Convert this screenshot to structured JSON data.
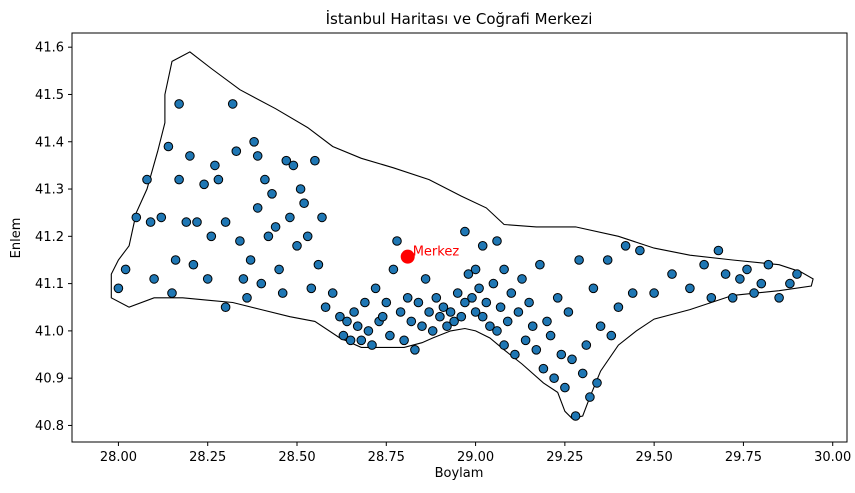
{
  "chart_data": {
    "type": "scatter",
    "title": "İstanbul Haritası ve Coğrafi Merkezi",
    "xlabel": "Boylam",
    "ylabel": "Enlem",
    "xlim": [
      27.87,
      30.04
    ],
    "ylim": [
      40.765,
      41.63
    ],
    "xticks": [
      28.0,
      28.25,
      28.5,
      28.75,
      29.0,
      29.25,
      29.5,
      29.75,
      30.0
    ],
    "xtick_labels": [
      "28.00",
      "28.25",
      "28.50",
      "28.75",
      "29.00",
      "29.25",
      "29.50",
      "29.75",
      "30.00"
    ],
    "yticks": [
      40.8,
      40.9,
      41.0,
      41.1,
      41.2,
      41.3,
      41.4,
      41.5,
      41.6
    ],
    "ytick_labels": [
      "40.8",
      "40.9",
      "41.0",
      "41.1",
      "41.2",
      "41.3",
      "41.4",
      "41.5",
      "41.6"
    ],
    "grid": false,
    "colors": {
      "points": "#1f77b4",
      "point_edge": "#000000",
      "boundary": "#000000",
      "center": "#ff0000"
    },
    "center": {
      "label": "Merkez",
      "x": 28.81,
      "y": 41.157
    },
    "boundary_outline": [
      [
        27.98,
        41.09
      ],
      [
        27.98,
        41.12
      ],
      [
        28.0,
        41.15
      ],
      [
        28.03,
        41.18
      ],
      [
        28.05,
        41.25
      ],
      [
        28.08,
        41.3
      ],
      [
        28.11,
        41.38
      ],
      [
        28.13,
        41.44
      ],
      [
        28.13,
        41.5
      ],
      [
        28.15,
        41.57
      ],
      [
        28.2,
        41.59
      ],
      [
        28.26,
        41.555
      ],
      [
        28.34,
        41.51
      ],
      [
        28.44,
        41.47
      ],
      [
        28.53,
        41.43
      ],
      [
        28.6,
        41.39
      ],
      [
        28.68,
        41.365
      ],
      [
        28.77,
        41.345
      ],
      [
        28.87,
        41.32
      ],
      [
        28.96,
        41.285
      ],
      [
        29.03,
        41.26
      ],
      [
        29.08,
        41.225
      ],
      [
        29.17,
        41.22
      ],
      [
        29.28,
        41.22
      ],
      [
        29.4,
        41.2
      ],
      [
        29.5,
        41.175
      ],
      [
        29.6,
        41.16
      ],
      [
        29.72,
        41.15
      ],
      [
        29.85,
        41.14
      ],
      [
        29.91,
        41.125
      ],
      [
        29.945,
        41.11
      ],
      [
        29.94,
        41.095
      ],
      [
        29.85,
        41.085
      ],
      [
        29.72,
        41.075
      ],
      [
        29.6,
        41.045
      ],
      [
        29.5,
        41.025
      ],
      [
        29.45,
        41.0
      ],
      [
        29.4,
        40.97
      ],
      [
        29.35,
        40.915
      ],
      [
        29.32,
        40.86
      ],
      [
        29.3,
        40.82
      ],
      [
        29.27,
        40.815
      ],
      [
        29.25,
        40.83
      ],
      [
        29.23,
        40.87
      ],
      [
        29.19,
        40.89
      ],
      [
        29.13,
        40.93
      ],
      [
        29.08,
        40.96
      ],
      [
        29.04,
        40.985
      ],
      [
        29.0,
        41.0
      ],
      [
        28.97,
        41.005
      ],
      [
        28.93,
        41.0
      ],
      [
        28.88,
        40.985
      ],
      [
        28.85,
        40.975
      ],
      [
        28.8,
        40.965
      ],
      [
        28.75,
        40.965
      ],
      [
        28.68,
        40.965
      ],
      [
        28.62,
        40.985
      ],
      [
        28.55,
        41.02
      ],
      [
        28.48,
        41.03
      ],
      [
        28.4,
        41.045
      ],
      [
        28.32,
        41.06
      ],
      [
        28.25,
        41.065
      ],
      [
        28.18,
        41.07
      ],
      [
        28.1,
        41.07
      ],
      [
        28.03,
        41.05
      ],
      [
        27.98,
        41.07
      ]
    ],
    "points": [
      [
        28.0,
        41.09
      ],
      [
        28.02,
        41.13
      ],
      [
        28.05,
        41.24
      ],
      [
        28.08,
        41.32
      ],
      [
        28.09,
        41.23
      ],
      [
        28.1,
        41.11
      ],
      [
        28.12,
        41.24
      ],
      [
        28.14,
        41.39
      ],
      [
        28.15,
        41.08
      ],
      [
        28.16,
        41.15
      ],
      [
        28.17,
        41.32
      ],
      [
        28.17,
        41.48
      ],
      [
        28.19,
        41.23
      ],
      [
        28.2,
        41.37
      ],
      [
        28.21,
        41.14
      ],
      [
        28.22,
        41.23
      ],
      [
        28.24,
        41.31
      ],
      [
        28.25,
        41.11
      ],
      [
        28.26,
        41.2
      ],
      [
        28.27,
        41.35
      ],
      [
        28.28,
        41.32
      ],
      [
        28.3,
        41.23
      ],
      [
        28.3,
        41.05
      ],
      [
        28.32,
        41.48
      ],
      [
        28.33,
        41.38
      ],
      [
        28.34,
        41.19
      ],
      [
        28.35,
        41.11
      ],
      [
        28.36,
        41.07
      ],
      [
        28.37,
        41.15
      ],
      [
        28.38,
        41.4
      ],
      [
        28.39,
        41.37
      ],
      [
        28.39,
        41.26
      ],
      [
        28.4,
        41.1
      ],
      [
        28.41,
        41.32
      ],
      [
        28.42,
        41.2
      ],
      [
        28.43,
        41.29
      ],
      [
        28.44,
        41.22
      ],
      [
        28.45,
        41.13
      ],
      [
        28.46,
        41.08
      ],
      [
        28.47,
        41.36
      ],
      [
        28.48,
        41.24
      ],
      [
        28.49,
        41.35
      ],
      [
        28.5,
        41.18
      ],
      [
        28.51,
        41.3
      ],
      [
        28.52,
        41.27
      ],
      [
        28.53,
        41.2
      ],
      [
        28.54,
        41.09
      ],
      [
        28.55,
        41.36
      ],
      [
        28.56,
        41.14
      ],
      [
        28.57,
        41.24
      ],
      [
        28.58,
        41.05
      ],
      [
        28.6,
        41.08
      ],
      [
        28.62,
        41.03
      ],
      [
        28.63,
        40.99
      ],
      [
        28.64,
        41.02
      ],
      [
        28.65,
        40.98
      ],
      [
        28.66,
        41.04
      ],
      [
        28.67,
        41.01
      ],
      [
        28.68,
        40.98
      ],
      [
        28.69,
        41.06
      ],
      [
        28.7,
        41.0
      ],
      [
        28.71,
        40.97
      ],
      [
        28.72,
        41.09
      ],
      [
        28.73,
        41.02
      ],
      [
        28.74,
        41.03
      ],
      [
        28.75,
        41.06
      ],
      [
        28.76,
        40.99
      ],
      [
        28.77,
        41.13
      ],
      [
        28.78,
        41.19
      ],
      [
        28.79,
        41.04
      ],
      [
        28.8,
        40.98
      ],
      [
        28.81,
        41.07
      ],
      [
        28.82,
        41.02
      ],
      [
        28.83,
        40.96
      ],
      [
        28.84,
        41.06
      ],
      [
        28.85,
        41.01
      ],
      [
        28.86,
        41.11
      ],
      [
        28.87,
        41.04
      ],
      [
        28.88,
        41.0
      ],
      [
        28.89,
        41.07
      ],
      [
        28.9,
        41.03
      ],
      [
        28.91,
        41.05
      ],
      [
        28.92,
        41.01
      ],
      [
        28.93,
        41.04
      ],
      [
        28.94,
        41.02
      ],
      [
        28.95,
        41.08
      ],
      [
        28.96,
        41.03
      ],
      [
        28.97,
        41.06
      ],
      [
        28.97,
        41.21
      ],
      [
        28.98,
        41.12
      ],
      [
        28.99,
        41.07
      ],
      [
        29.0,
        41.04
      ],
      [
        29.0,
        41.13
      ],
      [
        29.01,
        41.09
      ],
      [
        29.02,
        41.03
      ],
      [
        29.02,
        41.18
      ],
      [
        29.03,
        41.06
      ],
      [
        29.04,
        41.01
      ],
      [
        29.05,
        41.1
      ],
      [
        29.06,
        41.0
      ],
      [
        29.06,
        41.19
      ],
      [
        29.07,
        41.05
      ],
      [
        29.08,
        41.13
      ],
      [
        29.08,
        40.97
      ],
      [
        29.09,
        41.02
      ],
      [
        29.1,
        41.08
      ],
      [
        29.11,
        40.95
      ],
      [
        29.12,
        41.04
      ],
      [
        29.13,
        41.11
      ],
      [
        29.14,
        40.98
      ],
      [
        29.15,
        41.06
      ],
      [
        29.16,
        41.01
      ],
      [
        29.17,
        40.96
      ],
      [
        29.18,
        41.14
      ],
      [
        29.19,
        40.92
      ],
      [
        29.2,
        41.02
      ],
      [
        29.21,
        40.99
      ],
      [
        29.22,
        40.9
      ],
      [
        29.23,
        41.07
      ],
      [
        29.24,
        40.95
      ],
      [
        29.25,
        40.88
      ],
      [
        29.26,
        41.04
      ],
      [
        29.27,
        40.94
      ],
      [
        29.28,
        40.82
      ],
      [
        29.29,
        41.15
      ],
      [
        29.3,
        40.91
      ],
      [
        29.31,
        40.97
      ],
      [
        29.32,
        40.86
      ],
      [
        29.33,
        41.09
      ],
      [
        29.34,
        40.89
      ],
      [
        29.35,
        41.01
      ],
      [
        29.37,
        41.15
      ],
      [
        29.38,
        40.99
      ],
      [
        29.4,
        41.05
      ],
      [
        29.42,
        41.18
      ],
      [
        29.44,
        41.08
      ],
      [
        29.46,
        41.17
      ],
      [
        29.5,
        41.08
      ],
      [
        29.55,
        41.12
      ],
      [
        29.6,
        41.09
      ],
      [
        29.64,
        41.14
      ],
      [
        29.66,
        41.07
      ],
      [
        29.68,
        41.17
      ],
      [
        29.7,
        41.12
      ],
      [
        29.72,
        41.07
      ],
      [
        29.74,
        41.11
      ],
      [
        29.76,
        41.13
      ],
      [
        29.78,
        41.08
      ],
      [
        29.8,
        41.1
      ],
      [
        29.82,
        41.14
      ],
      [
        29.85,
        41.07
      ],
      [
        29.88,
        41.1
      ],
      [
        29.9,
        41.12
      ]
    ]
  }
}
